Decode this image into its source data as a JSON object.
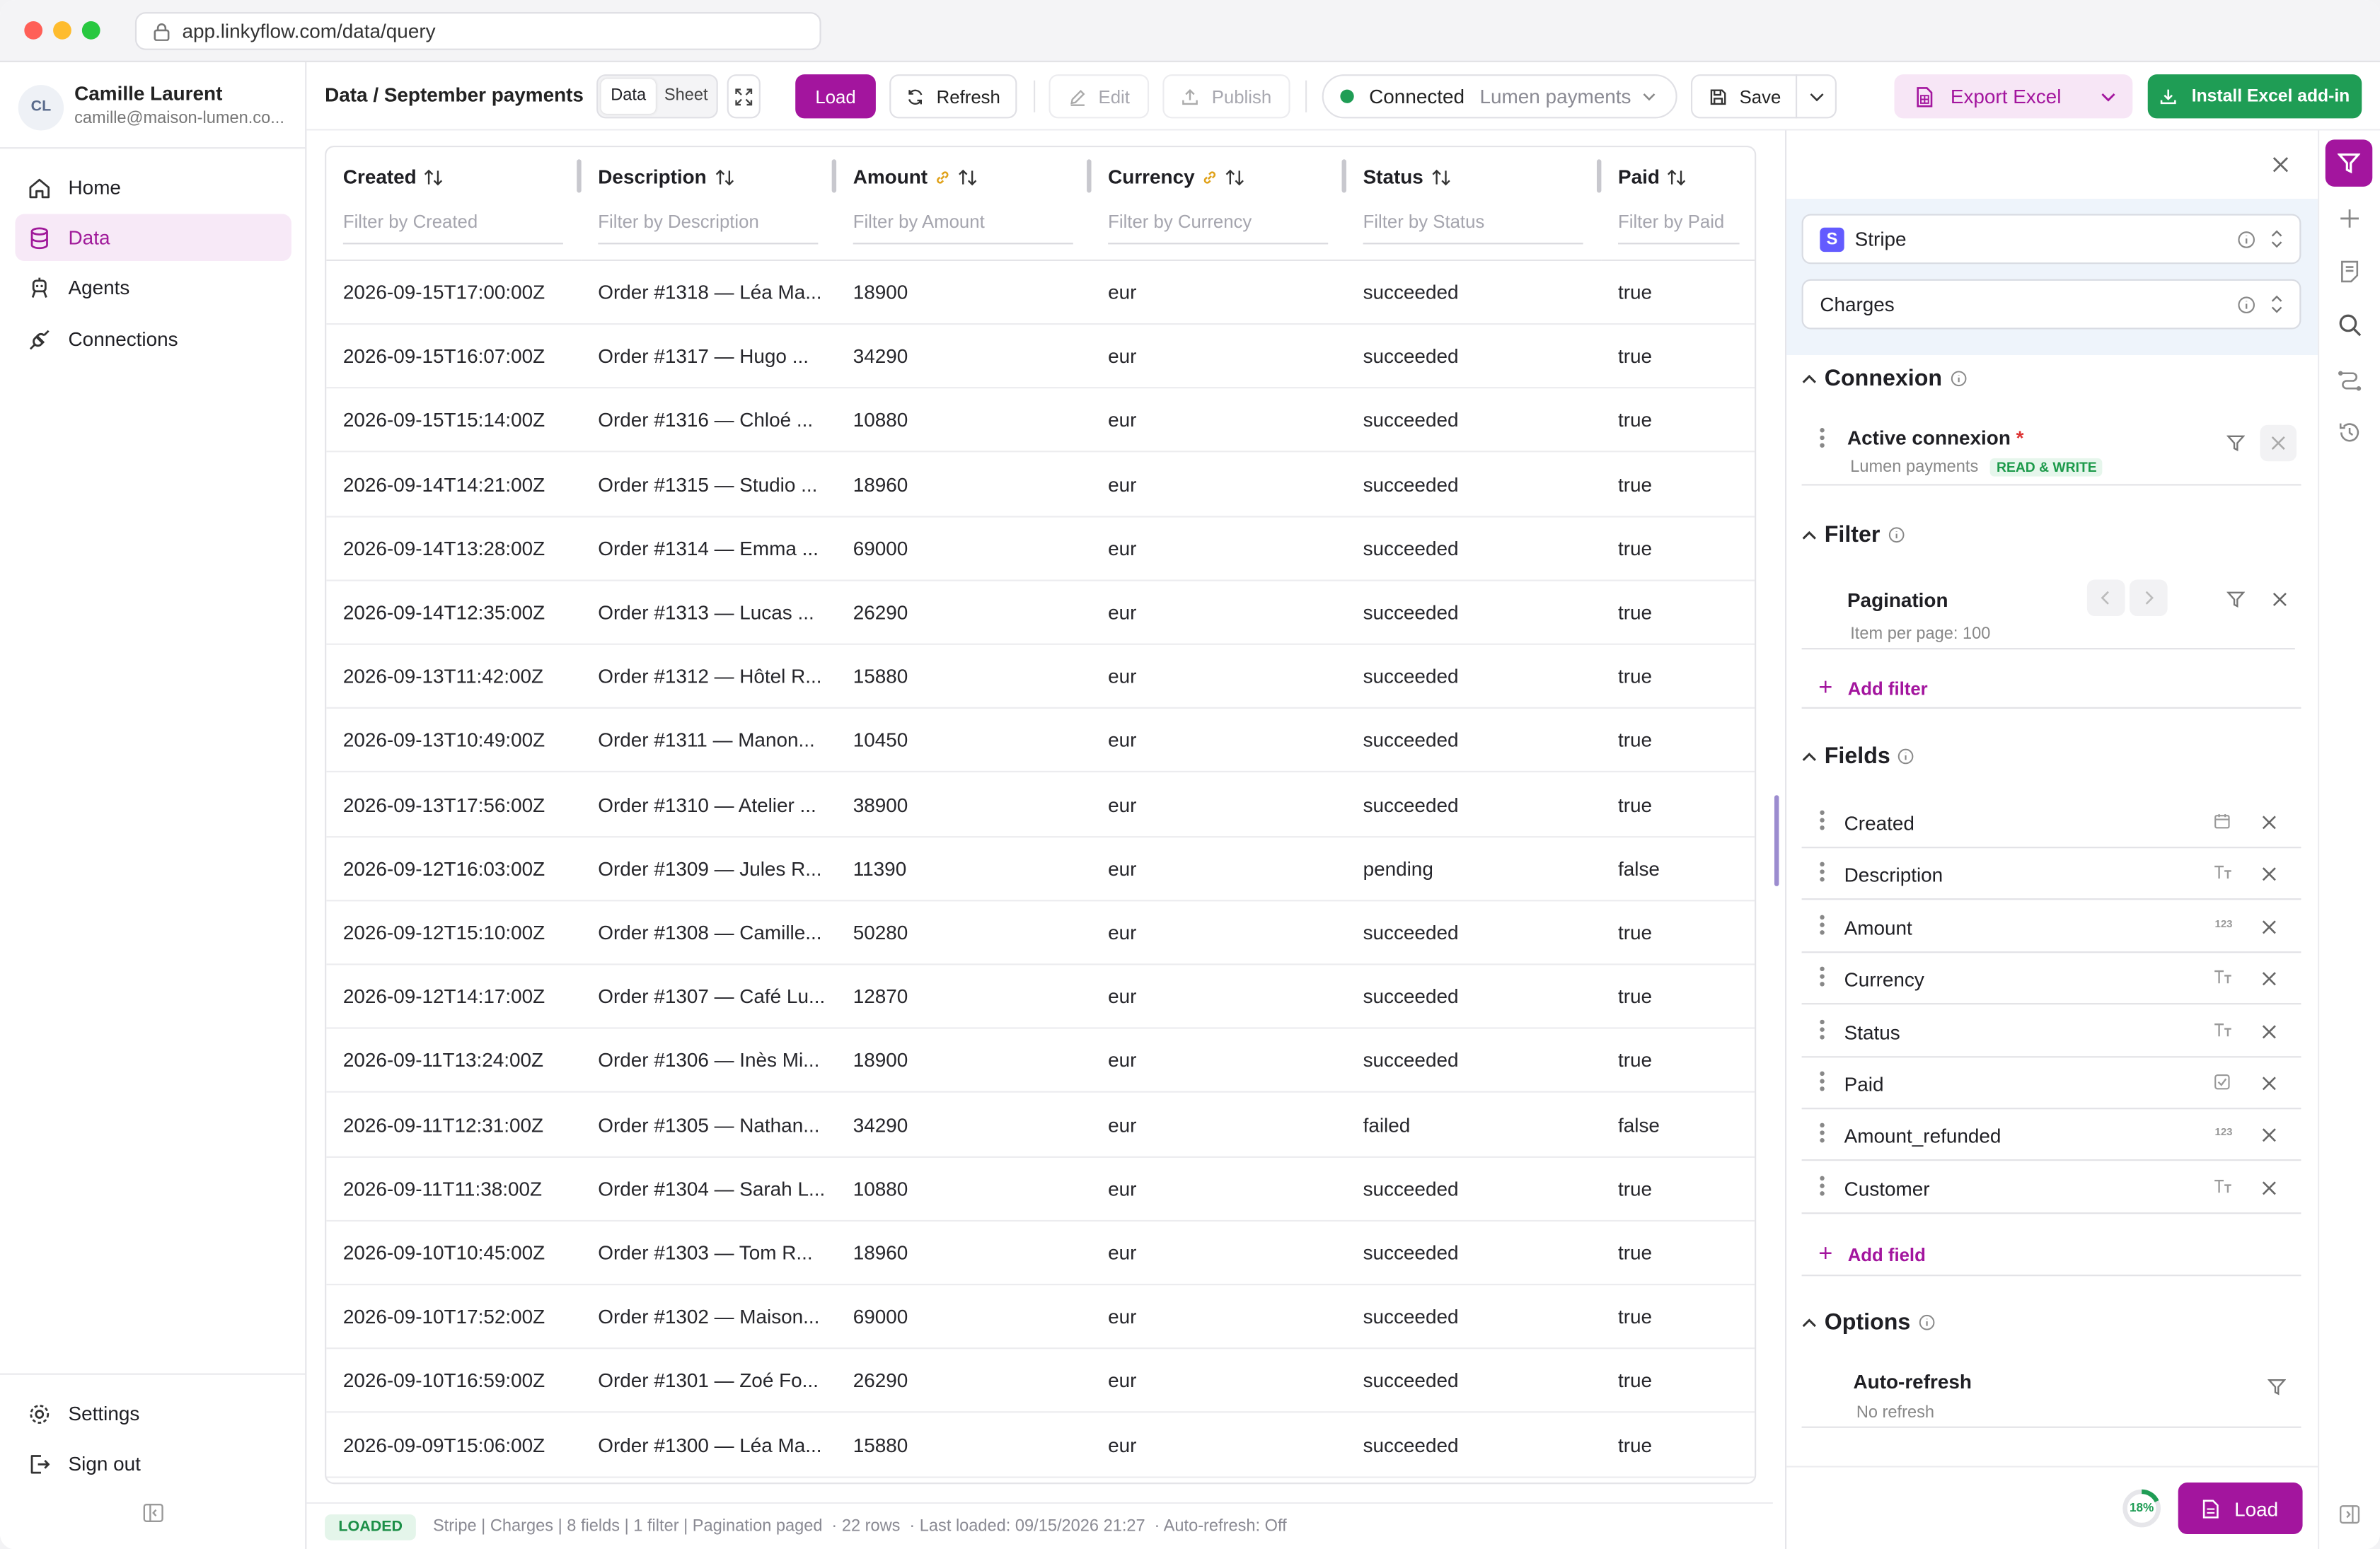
{
  "browser": {
    "url": "app.linkyflow.com/data/query"
  },
  "user": {
    "initials": "CL",
    "name": "Camille Laurent",
    "email": "camille@maison-lumen.co..."
  },
  "nav": {
    "items": [
      {
        "label": "Home",
        "icon": "home-icon"
      },
      {
        "label": "Data",
        "icon": "database-icon"
      },
      {
        "label": "Agents",
        "icon": "agent-icon"
      },
      {
        "label": "Connections",
        "icon": "plug-icon"
      }
    ],
    "bottom": [
      {
        "label": "Settings",
        "icon": "gear-icon"
      },
      {
        "label": "Sign out",
        "icon": "sign-out-icon"
      }
    ]
  },
  "topbar": {
    "breadcrumb": "Data / September payments",
    "view_data": "Data",
    "view_sheet": "Sheet",
    "load": "Load",
    "refresh": "Refresh",
    "edit": "Edit",
    "publish": "Publish",
    "connection_status": "Connected",
    "connection_name": "Lumen payments",
    "save": "Save",
    "export": "Export Excel",
    "install": "Install Excel add-in"
  },
  "table": {
    "columns": [
      {
        "label": "Created",
        "filter": "Filter by Created",
        "linked": false
      },
      {
        "label": "Description",
        "filter": "Filter by Description",
        "linked": false
      },
      {
        "label": "Amount",
        "filter": "Filter by Amount",
        "linked": true
      },
      {
        "label": "Currency",
        "filter": "Filter by Currency",
        "linked": true
      },
      {
        "label": "Status",
        "filter": "Filter by Status",
        "linked": false
      },
      {
        "label": "Paid",
        "filter": "Filter by Paid",
        "linked": false
      }
    ],
    "rows": [
      [
        "2026-09-15T17:00:00Z",
        "Order #1318 — Léa Ma...",
        "18900",
        "eur",
        "succeeded",
        "true"
      ],
      [
        "2026-09-15T16:07:00Z",
        "Order #1317 — Hugo ...",
        "34290",
        "eur",
        "succeeded",
        "true"
      ],
      [
        "2026-09-15T15:14:00Z",
        "Order #1316 — Chloé ...",
        "10880",
        "eur",
        "succeeded",
        "true"
      ],
      [
        "2026-09-14T14:21:00Z",
        "Order #1315 — Studio ...",
        "18960",
        "eur",
        "succeeded",
        "true"
      ],
      [
        "2026-09-14T13:28:00Z",
        "Order #1314 — Emma ...",
        "69000",
        "eur",
        "succeeded",
        "true"
      ],
      [
        "2026-09-14T12:35:00Z",
        "Order #1313 — Lucas ...",
        "26290",
        "eur",
        "succeeded",
        "true"
      ],
      [
        "2026-09-13T11:42:00Z",
        "Order #1312 — Hôtel R...",
        "15880",
        "eur",
        "succeeded",
        "true"
      ],
      [
        "2026-09-13T10:49:00Z",
        "Order #1311 — Manon...",
        "10450",
        "eur",
        "succeeded",
        "true"
      ],
      [
        "2026-09-13T17:56:00Z",
        "Order #1310 — Atelier ...",
        "38900",
        "eur",
        "succeeded",
        "true"
      ],
      [
        "2026-09-12T16:03:00Z",
        "Order #1309 — Jules R...",
        "11390",
        "eur",
        "pending",
        "false"
      ],
      [
        "2026-09-12T15:10:00Z",
        "Order #1308 — Camille...",
        "50280",
        "eur",
        "succeeded",
        "true"
      ],
      [
        "2026-09-12T14:17:00Z",
        "Order #1307 — Café Lu...",
        "12870",
        "eur",
        "succeeded",
        "true"
      ],
      [
        "2026-09-11T13:24:00Z",
        "Order #1306 — Inès Mi...",
        "18900",
        "eur",
        "succeeded",
        "true"
      ],
      [
        "2026-09-11T12:31:00Z",
        "Order #1305 — Nathan...",
        "34290",
        "eur",
        "failed",
        "false"
      ],
      [
        "2026-09-11T11:38:00Z",
        "Order #1304 — Sarah L...",
        "10880",
        "eur",
        "succeeded",
        "true"
      ],
      [
        "2026-09-10T10:45:00Z",
        "Order #1303 — Tom R...",
        "18960",
        "eur",
        "succeeded",
        "true"
      ],
      [
        "2026-09-10T17:52:00Z",
        "Order #1302 — Maison...",
        "69000",
        "eur",
        "succeeded",
        "true"
      ],
      [
        "2026-09-10T16:59:00Z",
        "Order #1301 — Zoé Fo...",
        "26290",
        "eur",
        "succeeded",
        "true"
      ],
      [
        "2026-09-09T15:06:00Z",
        "Order #1300 — Léa Ma...",
        "15880",
        "eur",
        "succeeded",
        "true"
      ]
    ]
  },
  "statusbar": {
    "badge": "LOADED",
    "summary": "Stripe | Charges | 8 fields | 1 filter | Pagination paged",
    "rows": "· 22 rows",
    "last_loaded": "· Last loaded: 09/15/2026 21:27",
    "auto_refresh": "· Auto-refresh: Off"
  },
  "panel": {
    "source": "Stripe",
    "object": "Charges",
    "connexion": {
      "title": "Connexion",
      "label": "Active connexion",
      "required": "*",
      "value": "Lumen payments",
      "badge": "READ & WRITE"
    },
    "filter": {
      "title": "Filter",
      "label": "Pagination",
      "detail": "Item per page: 100",
      "add": "Add filter"
    },
    "fields": {
      "title": "Fields",
      "items": [
        {
          "name": "Created",
          "type": "calendar"
        },
        {
          "name": "Description",
          "type": "text"
        },
        {
          "name": "Amount",
          "type": "number"
        },
        {
          "name": "Currency",
          "type": "text"
        },
        {
          "name": "Status",
          "type": "text"
        },
        {
          "name": "Paid",
          "type": "boolean"
        },
        {
          "name": "Amount_refunded",
          "type": "number"
        },
        {
          "name": "Customer",
          "type": "text"
        }
      ],
      "add": "Add field"
    },
    "options": {
      "title": "Options",
      "label": "Auto-refresh",
      "detail": "No refresh"
    },
    "progress": 0.18,
    "progress_label": "18%",
    "load": "Load"
  },
  "colors": {
    "accent": "#a3159e",
    "green": "#1f9d55",
    "export_bg": "#f7e6f6"
  }
}
